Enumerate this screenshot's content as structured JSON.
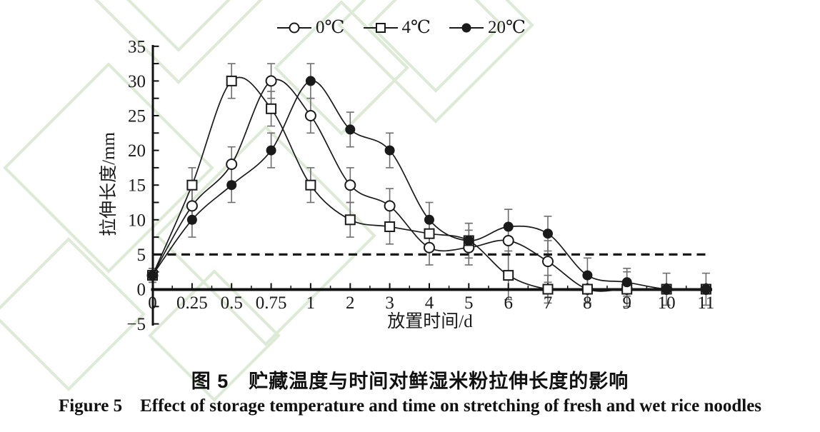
{
  "figure": {
    "caption_zh": "图 5 贮藏温度与时间对鲜湿米粉拉伸长度的影响",
    "caption_en": "Figure 5 Effect of storage temperature and time on stretching of fresh and wet rice noodles"
  },
  "chart_data": {
    "type": "line",
    "title": "",
    "xlabel": "放置时间/d",
    "ylabel": "拉伸长度/mm",
    "x_categories": [
      "0",
      "0.25",
      "0.5",
      "0.75",
      "1",
      "2",
      "3",
      "4",
      "5",
      "6",
      "7",
      "8",
      "9",
      "10",
      "11"
    ],
    "ylim": [
      -5,
      35
    ],
    "ytick_major_step": 5,
    "ytick_minor_step": 2.5,
    "grid": false,
    "legend_position": "top-center",
    "reference_line": {
      "y": 5,
      "style": "dashed"
    },
    "series": [
      {
        "name": "0℃",
        "marker": "open-circle",
        "values": [
          2,
          12,
          18,
          30,
          25,
          15,
          12,
          6,
          6,
          7,
          4,
          0,
          0,
          0,
          0
        ],
        "errors": [
          1,
          2.5,
          2.5,
          2.5,
          2.5,
          2.5,
          2.5,
          2.5,
          2.5,
          4.5,
          3,
          2,
          2.5,
          0,
          0
        ]
      },
      {
        "name": "4℃",
        "marker": "open-square",
        "values": [
          2,
          15,
          30,
          26,
          15,
          10,
          9,
          8,
          7,
          2,
          0,
          0,
          0,
          0,
          0
        ],
        "errors": [
          1,
          2.5,
          2.5,
          2.5,
          2.5,
          2.5,
          2.5,
          2,
          2.5,
          3.5,
          2,
          2,
          0,
          0,
          0
        ]
      },
      {
        "name": "20℃",
        "marker": "filled-circle",
        "values": [
          2,
          10,
          15,
          20,
          30,
          23,
          20,
          10,
          7,
          9,
          8,
          2,
          1,
          0,
          0
        ],
        "errors": [
          1,
          2.5,
          2.5,
          2.5,
          2.5,
          2.5,
          2.5,
          2.5,
          2.5,
          2.5,
          2.5,
          2.5,
          2,
          2.3,
          2.3
        ]
      }
    ]
  },
  "colors": {
    "line": "#1a1a1a",
    "axis": "#111111",
    "error_bar": "#6e6e6e",
    "marker_fill_open": "#ffffff",
    "watermark": "#dcead6",
    "background": "#ffffff"
  }
}
